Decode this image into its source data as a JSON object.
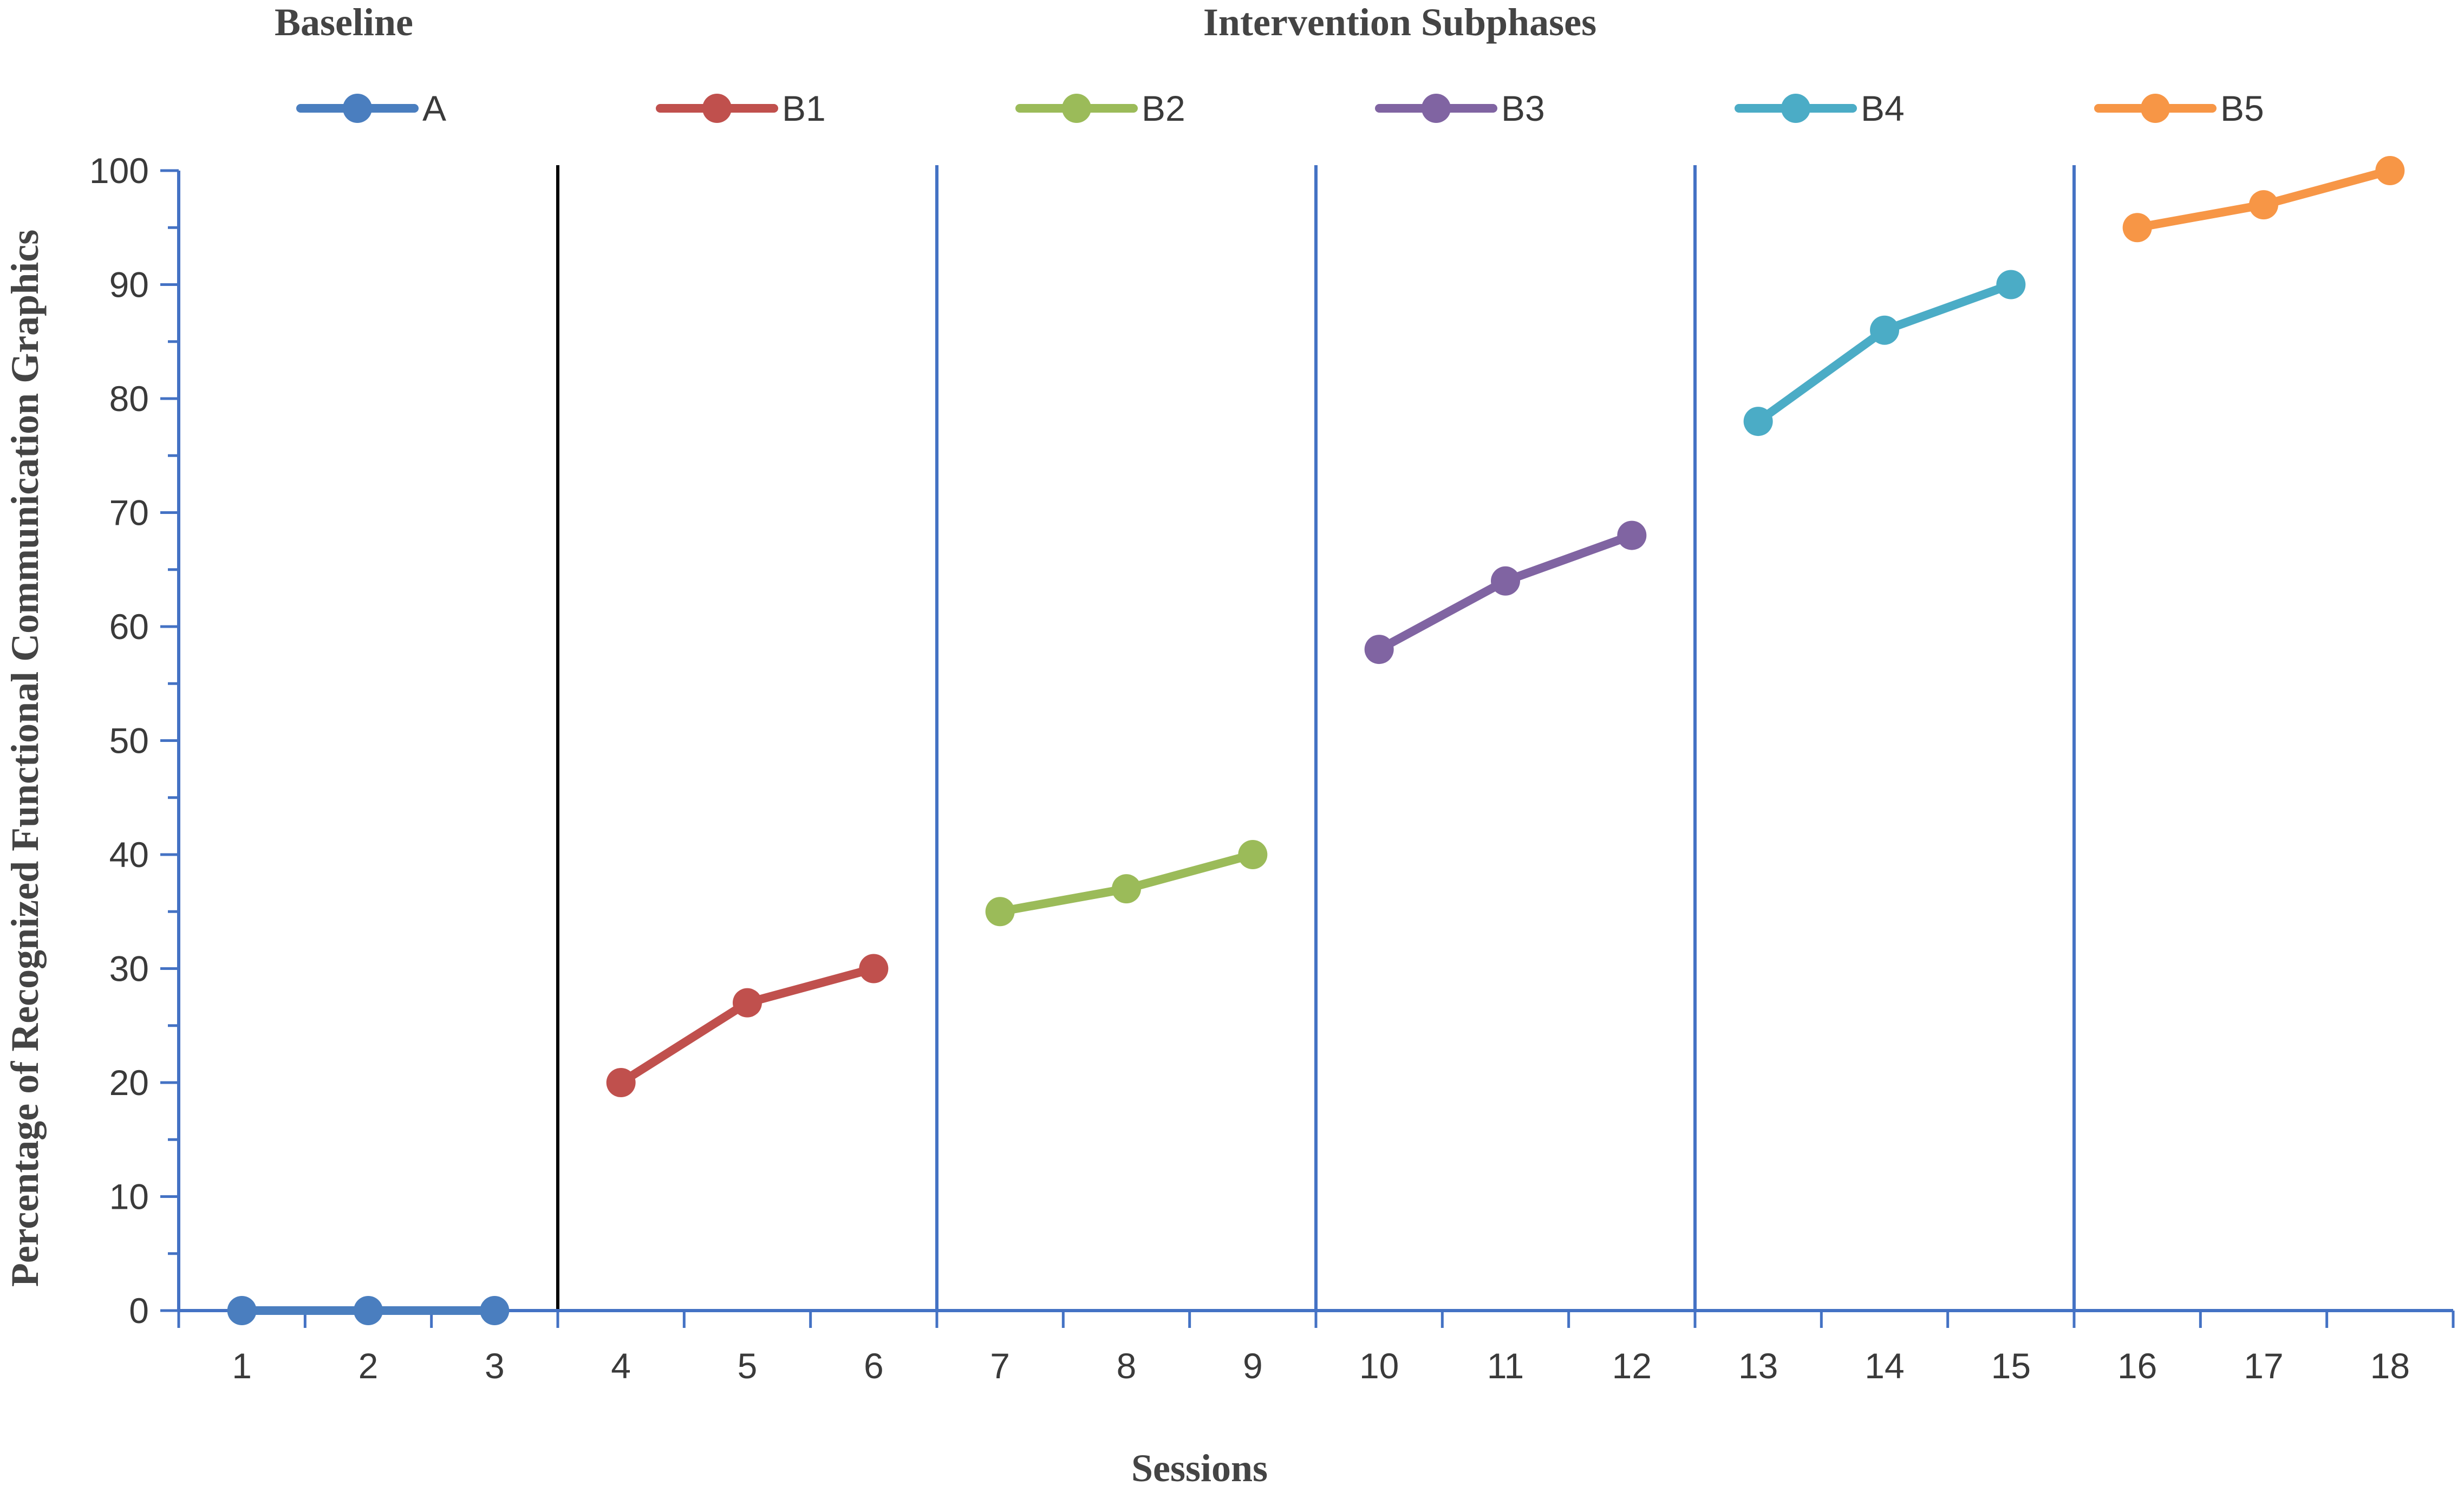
{
  "chart_data": {
    "type": "line",
    "phase_labels": {
      "baseline": "Baseline",
      "intervention": "Intervention Subphases"
    },
    "xlabel": "Sessions",
    "ylabel": "Percentage of Recognized Functional Communication Graphics",
    "ylim": [
      0,
      100
    ],
    "yticks": [
      0,
      10,
      20,
      30,
      40,
      50,
      60,
      70,
      80,
      90,
      100
    ],
    "xticks": [
      1,
      2,
      3,
      4,
      5,
      6,
      7,
      8,
      9,
      10,
      11,
      12,
      13,
      14,
      15,
      16,
      17,
      18
    ],
    "xlim": [
      0.5,
      18.5
    ],
    "grid": false,
    "legend_position": "top",
    "phase_change_lines": [
      {
        "after_session": 3,
        "color": "#000000"
      },
      {
        "after_session": 6,
        "color": "#4472c4"
      },
      {
        "after_session": 9,
        "color": "#4472c4"
      },
      {
        "after_session": 12,
        "color": "#4472c4"
      },
      {
        "after_session": 15,
        "color": "#4472c4"
      }
    ],
    "series": [
      {
        "name": "A",
        "color": "#4a7ebf",
        "x": [
          1,
          2,
          3
        ],
        "values": [
          0,
          0,
          0
        ]
      },
      {
        "name": "B1",
        "color": "#c0504d",
        "x": [
          4,
          5,
          6
        ],
        "values": [
          20,
          27,
          30
        ]
      },
      {
        "name": "B2",
        "color": "#9bbb59",
        "x": [
          7,
          8,
          9
        ],
        "values": [
          35,
          37,
          40
        ]
      },
      {
        "name": "B3",
        "color": "#8064a2",
        "x": [
          10,
          11,
          12
        ],
        "values": [
          58,
          64,
          68
        ]
      },
      {
        "name": "B4",
        "color": "#4bacc6",
        "x": [
          13,
          14,
          15
        ],
        "values": [
          78,
          86,
          90
        ]
      },
      {
        "name": "B5",
        "color": "#f79646",
        "x": [
          16,
          17,
          18
        ],
        "values": [
          95,
          97,
          100
        ]
      }
    ]
  }
}
